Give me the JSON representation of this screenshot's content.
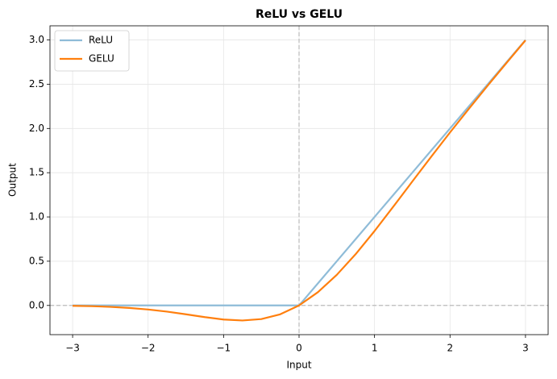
{
  "chart_data": {
    "type": "line",
    "title": "ReLU vs GELU",
    "xlabel": "Input",
    "ylabel": "Output",
    "x": [
      -3,
      -2.75,
      -2.5,
      -2.25,
      -2,
      -1.75,
      -1.5,
      -1.25,
      -1,
      -0.75,
      -0.5,
      -0.25,
      0,
      0.25,
      0.5,
      0.75,
      1,
      1.25,
      1.5,
      1.75,
      2,
      2.25,
      2.5,
      2.75,
      3
    ],
    "series": [
      {
        "name": "ReLU",
        "color": "#8fbcd8",
        "values": [
          0,
          0,
          0,
          0,
          0,
          0,
          0,
          0,
          0,
          0,
          0,
          0,
          0,
          0.25,
          0.5,
          0.75,
          1,
          1.25,
          1.5,
          1.75,
          2,
          2.25,
          2.5,
          2.75,
          3
        ]
      },
      {
        "name": "GELU",
        "color": "#ff7f0e",
        "values": [
          -0.004,
          -0.008,
          -0.016,
          -0.028,
          -0.046,
          -0.07,
          -0.1,
          -0.132,
          -0.159,
          -0.17,
          -0.154,
          -0.1,
          0,
          0.15,
          0.346,
          0.58,
          0.841,
          1.118,
          1.4,
          1.68,
          1.955,
          2.222,
          2.485,
          2.742,
          2.996
        ]
      }
    ],
    "xlim": [
      -3.3,
      3.3
    ],
    "ylim": [
      -0.33,
      3.16
    ],
    "xticks": [
      {
        "value": -3,
        "label": "−3"
      },
      {
        "value": -2,
        "label": "−2"
      },
      {
        "value": -1,
        "label": "−1"
      },
      0,
      1,
      2,
      3
    ],
    "yticks": [
      {
        "value": 0,
        "label": "0.0"
      },
      0.5,
      {
        "value": 1,
        "label": "1.0"
      },
      1.5,
      {
        "value": 2,
        "label": "2.0"
      },
      2.5,
      {
        "value": 3,
        "label": "3.0"
      }
    ],
    "axhline": 0,
    "axvline": 0,
    "grid": true,
    "legend": "upper left"
  }
}
